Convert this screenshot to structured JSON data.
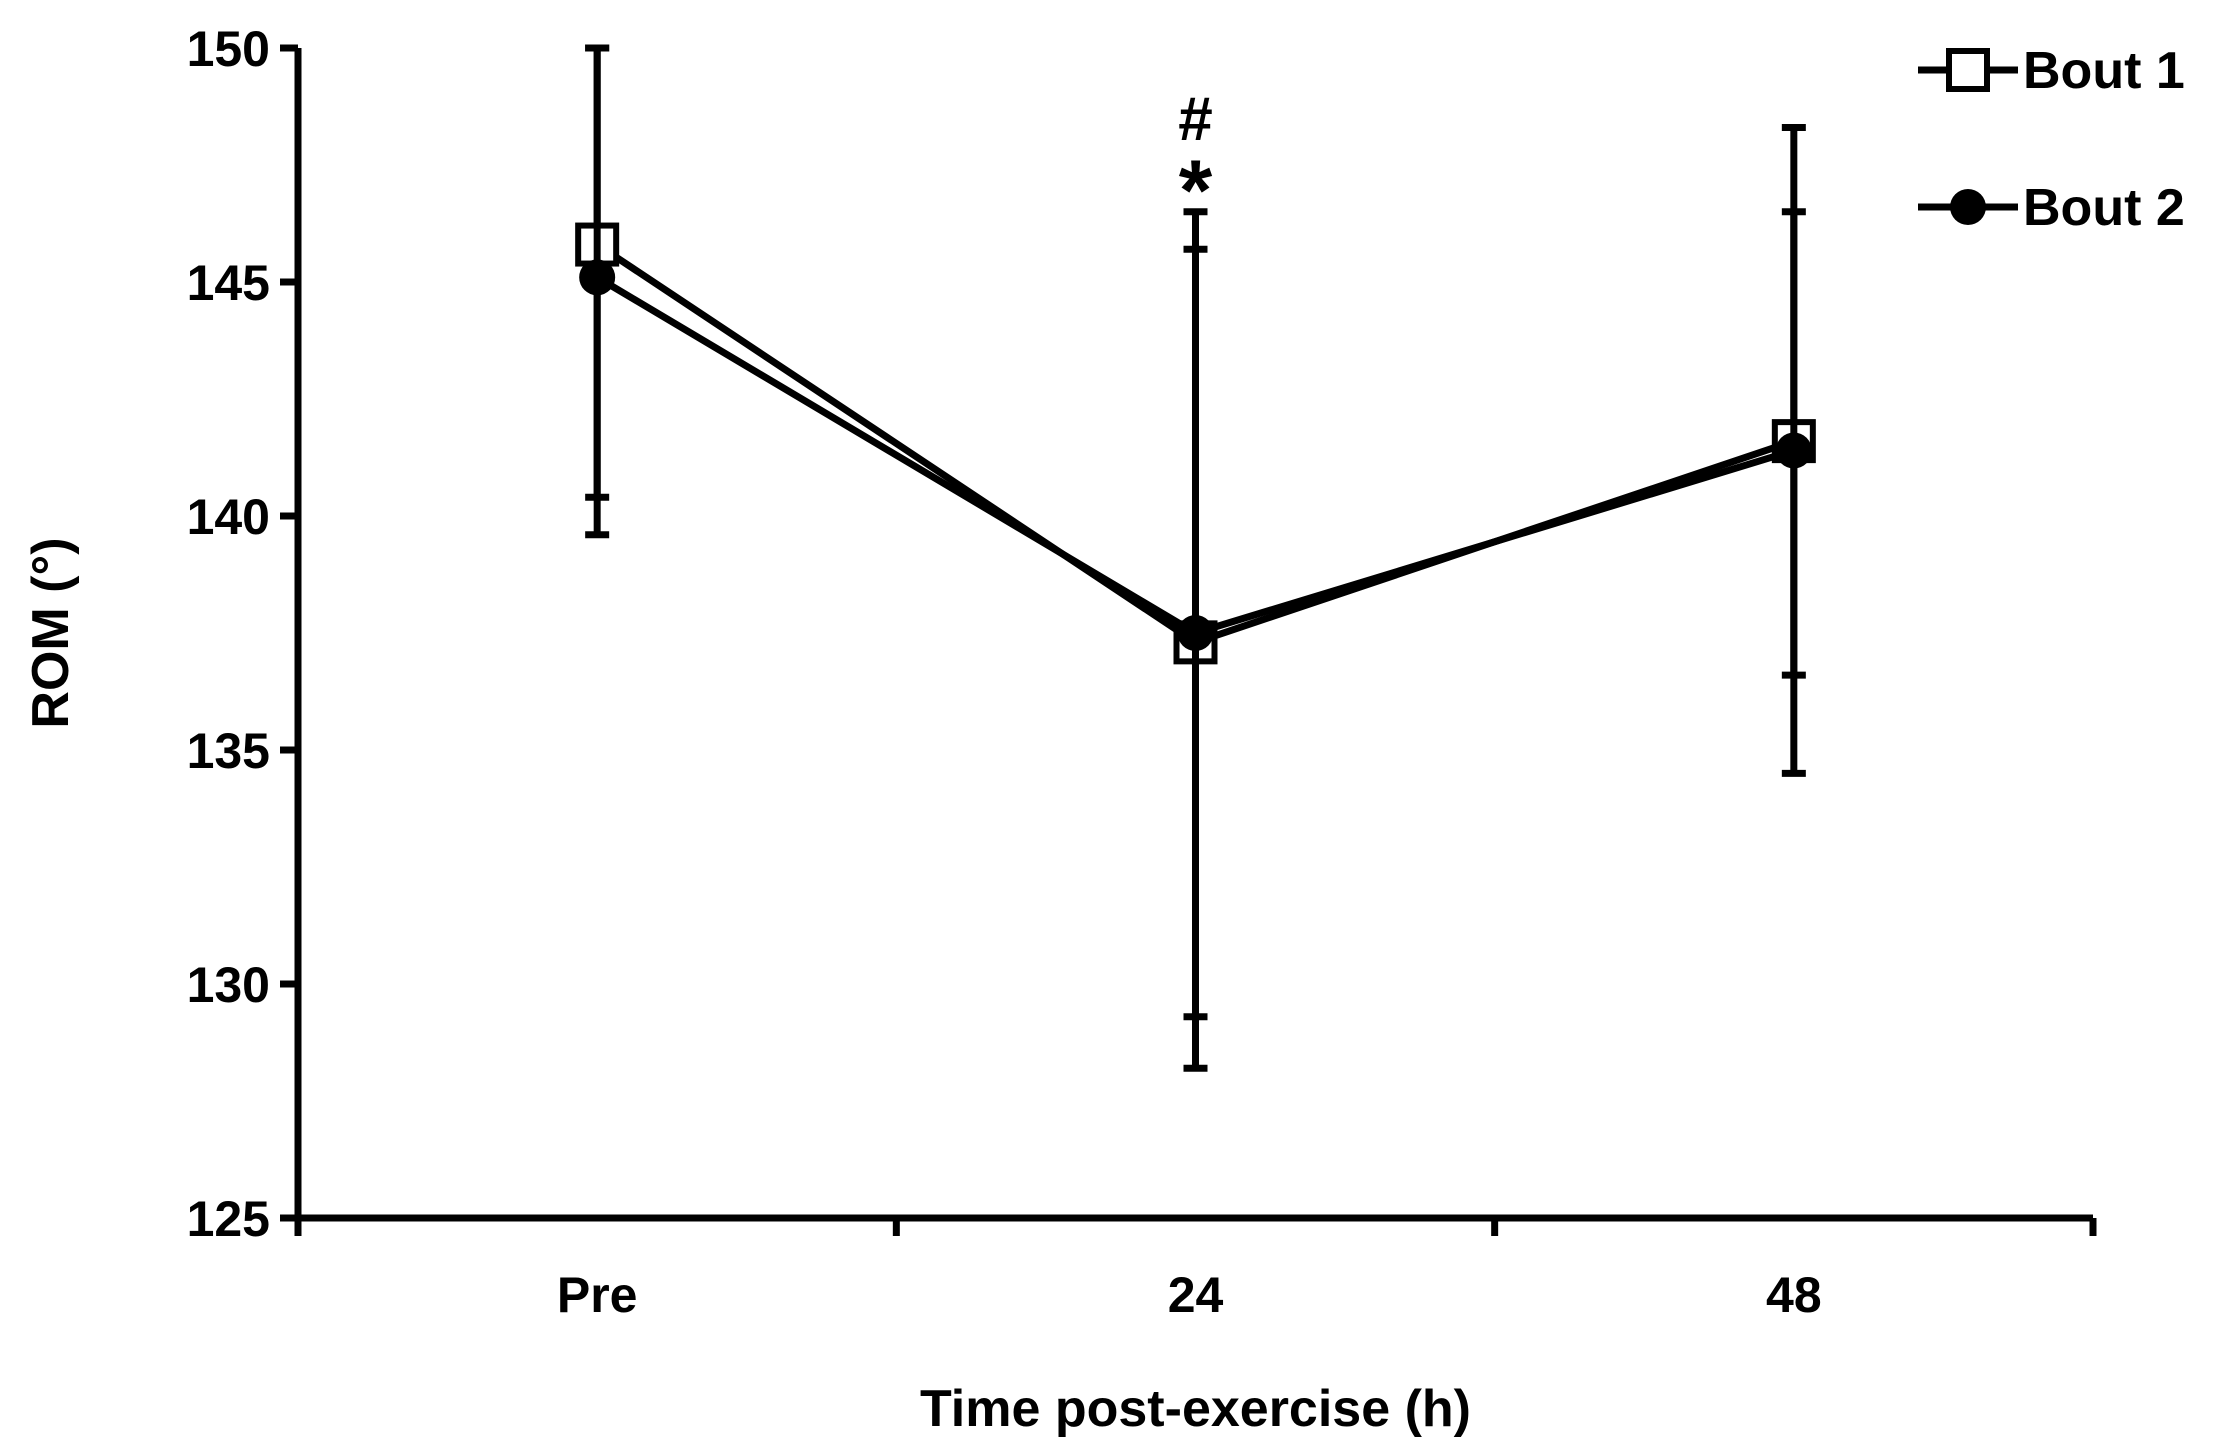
{
  "chart_data": {
    "type": "line",
    "title": "",
    "xlabel": "Time post-exercise (h)",
    "ylabel": "ROM (°)",
    "categories": [
      "Pre",
      "24",
      "48"
    ],
    "ylim": [
      125,
      150
    ],
    "yticks": [
      125,
      130,
      135,
      140,
      145,
      150
    ],
    "ytick_labels": [
      "125",
      "130",
      "135",
      "140",
      "145",
      "150"
    ],
    "grid": false,
    "legend_position": "top-right",
    "series": [
      {
        "name": "Bout 1",
        "marker": "open-square",
        "values": [
          145.8,
          137.3,
          141.6
        ],
        "error_upper": [
          150.0,
          146.5,
          148.3
        ],
        "error_lower": [
          140.4,
          128.2,
          136.6
        ]
      },
      {
        "name": "Bout 2",
        "marker": "filled-circle",
        "values": [
          145.1,
          137.5,
          141.4
        ],
        "error_upper": [
          150.0,
          145.7,
          146.5
        ],
        "error_lower": [
          139.6,
          129.3,
          134.5
        ]
      }
    ],
    "annotations": [
      {
        "category": "24",
        "symbol": "#"
      },
      {
        "category": "24",
        "symbol": "*"
      }
    ],
    "colors": {
      "line": "#000000",
      "background": "#ffffff"
    }
  }
}
